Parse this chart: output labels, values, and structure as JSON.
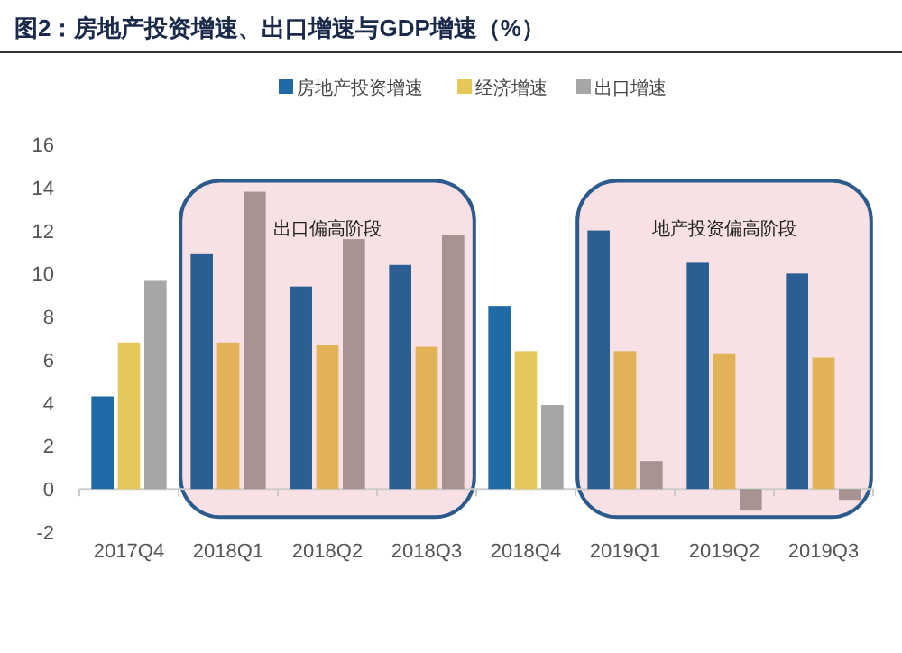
{
  "chart_data": {
    "type": "bar",
    "title": "图2：房地产投资增速、出口增速与GDP增速（%）",
    "categories": [
      "2017Q4",
      "2018Q1",
      "2018Q2",
      "2018Q3",
      "2018Q4",
      "2019Q1",
      "2019Q2",
      "2019Q3"
    ],
    "series": [
      {
        "name": "房地产投资增速",
        "color": "#1f6aa5",
        "colors": [
          "#1f6aa5",
          "#2b5f93",
          "#2b5f93",
          "#2b5f93",
          "#1f6aa5",
          "#2b5f93",
          "#2b5f93",
          "#2b5f93"
        ],
        "values": [
          4.3,
          10.9,
          9.4,
          10.4,
          8.5,
          12.0,
          10.5,
          10.0
        ]
      },
      {
        "name": "经济增速",
        "color": "#e6c85a",
        "colors": [
          "#e6c85a",
          "#e2b256",
          "#e2b256",
          "#e2b256",
          "#e6c85a",
          "#e2b256",
          "#e2b256",
          "#e2b256"
        ],
        "values": [
          6.8,
          6.8,
          6.7,
          6.6,
          6.4,
          6.4,
          6.3,
          6.1
        ]
      },
      {
        "name": "出口增速",
        "color": "#a6a6a6",
        "colors": [
          "#a6a6a6",
          "#a89292",
          "#a89292",
          "#a89292",
          "#a6a6a6",
          "#a89292",
          "#a89292",
          "#a89292"
        ],
        "values": [
          9.7,
          13.8,
          11.6,
          11.8,
          3.9,
          1.3,
          -1.0,
          -0.5
        ]
      }
    ],
    "ylim": [
      -2,
      16
    ],
    "yticks": [
      -2,
      0,
      2,
      4,
      6,
      8,
      10,
      12,
      14,
      16
    ],
    "bands": [
      {
        "axis": "x",
        "from": "2018Q1",
        "to": "2018Q3",
        "label": "出口偏高阶段",
        "color": "#f8e1e4"
      },
      {
        "axis": "x",
        "from": "2019Q1",
        "to": "2019Q3",
        "label": "地产投资偏高阶段",
        "color": "#f8e1e4"
      }
    ],
    "legend": "top"
  }
}
